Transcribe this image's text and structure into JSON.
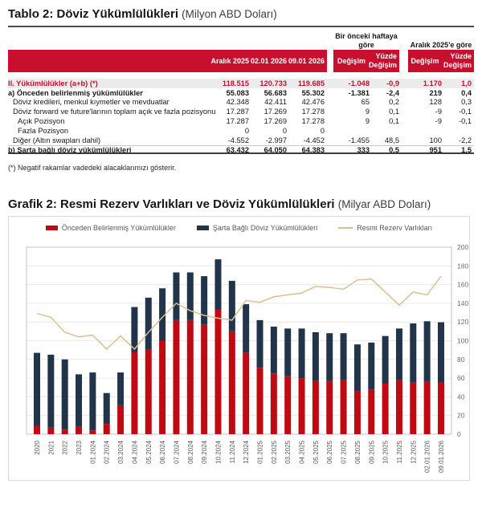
{
  "table": {
    "title": "Tablo 2: Döviz Yükümlülükleri",
    "title_unit": "(Milyon ABD Doları)",
    "accent_color": "#c8102e",
    "highlight_bg": "#ececec",
    "group_headers": {
      "prev_week": "Bir önceki haftaya göre",
      "vs_december": "Aralık 2025'e göre"
    },
    "columns": [
      "Aralık 2025",
      "02.01 2026",
      "09.01 2026",
      "Değişim",
      "Yüzde Değişim",
      "Değişim",
      "Yüzde Değişim"
    ],
    "rows": [
      {
        "label": "II. Yükümlülükler (a+b) (*)",
        "values": [
          "118.515",
          "120.733",
          "119.685",
          "-1.048",
          "-0,9",
          "1.170",
          "1,0"
        ]
      },
      {
        "label": "a) Önceden belirlenmiş yükümlülükler",
        "values": [
          "55.083",
          "56.683",
          "55.302",
          "-1.381",
          "-2,4",
          "219",
          "0,4"
        ]
      },
      {
        "label": "Döviz kredileri, menkul kıymetler ve mevduatlar",
        "values": [
          "42.348",
          "42.411",
          "42.476",
          "65",
          "0,2",
          "128",
          "0,3"
        ]
      },
      {
        "label": "Döviz forward ve future'larının toplam açık ve fazla pozisyonu",
        "values": [
          "17.287",
          "17.269",
          "17.278",
          "9",
          "0,1",
          "-9",
          "-0,1"
        ]
      },
      {
        "label": "Açık Pozisyon",
        "values": [
          "17.287",
          "17.269",
          "17.278",
          "9",
          "0,1",
          "-9",
          "-0,1"
        ]
      },
      {
        "label": "Fazla Pozisyon",
        "values": [
          "0",
          "0",
          "0",
          "",
          "",
          "",
          ""
        ]
      },
      {
        "label": "Diğer (Altın swapları dahil)",
        "values": [
          "-4.552",
          "-2.997",
          "-4.452",
          "-1.455",
          "48,5",
          "100",
          "-2,2"
        ]
      },
      {
        "label": "b) Şarta bağlı döviz yükümlülükleri",
        "values": [
          "63.432",
          "64.050",
          "64.383",
          "333",
          "0,5",
          "951",
          "1,5"
        ]
      }
    ],
    "footnote": "(*) Negatif rakamlar vadedeki alacaklarımızı gösterir."
  },
  "chart": {
    "title": "Grafik 2: Resmi Rezerv Varlıkları ve Döviz Yükümlülükleri",
    "title_unit": "(Milyar ABD Doları)"
  },
  "chart_data": {
    "type": "bar",
    "subtype": "stacked bars with line overlay",
    "title": "Grafik 2: Resmi Rezerv Varlıkları ve Döviz Yükümlülükleri (Milyar ABD Doları)",
    "categories": [
      "2020",
      "2021",
      "2022",
      "2023",
      "01.2024",
      "02.2024",
      "03.2024",
      "04.2024",
      "05.2024",
      "06.2024",
      "07.2024",
      "08.2024",
      "09.2024",
      "10.2024",
      "11.2024",
      "12.2024",
      "01.2025",
      "02.2025",
      "03.2025",
      "04.2025",
      "05.2025",
      "06.2025",
      "07.2025",
      "08.2025",
      "09.2025",
      "10.2025",
      "11.2025",
      "12.2025",
      "02.01.2026",
      "09.01.2026"
    ],
    "series": [
      {
        "name": "Önceden Belirlenmiş Yükümlülükler",
        "type": "bar",
        "stack": true,
        "color": "#c00a13",
        "values": [
          9,
          7,
          5,
          8,
          4,
          11,
          31,
          88,
          91,
          100,
          122,
          122,
          117,
          133,
          110,
          87,
          71,
          65,
          62,
          60,
          57,
          57,
          58,
          46,
          48,
          54,
          58,
          55.1,
          56.7,
          55.3
        ]
      },
      {
        "name": "Şarta Bağlı Döviz Yükümlülükleri",
        "type": "bar",
        "stack": true,
        "color": "#21344a",
        "values": [
          78,
          78,
          75,
          56,
          62,
          33,
          35,
          48,
          55,
          56,
          51,
          51,
          52,
          54,
          54,
          52,
          51,
          50,
          51,
          53,
          52,
          51,
          50,
          50,
          50,
          51,
          55,
          63.4,
          64.1,
          64.4
        ]
      },
      {
        "name": "Resmi Rezerv Varlıkları",
        "type": "line",
        "color": "#d8c193",
        "values": [
          129,
          125,
          109,
          104,
          106,
          91,
          105,
          91,
          109,
          125,
          140,
          132,
          127,
          124,
          122,
          143,
          141,
          147,
          149,
          151,
          158,
          157,
          155,
          165,
          166,
          152,
          138,
          152,
          149,
          169
        ]
      }
    ],
    "ylim": [
      0,
      200
    ],
    "ytick_step": 20,
    "yticks": [
      0,
      20,
      40,
      60,
      80,
      100,
      120,
      140,
      160,
      180,
      200
    ],
    "y_axis_side": "right",
    "x_labels_rotation": -90,
    "grid": true,
    "legend_position": "top"
  }
}
